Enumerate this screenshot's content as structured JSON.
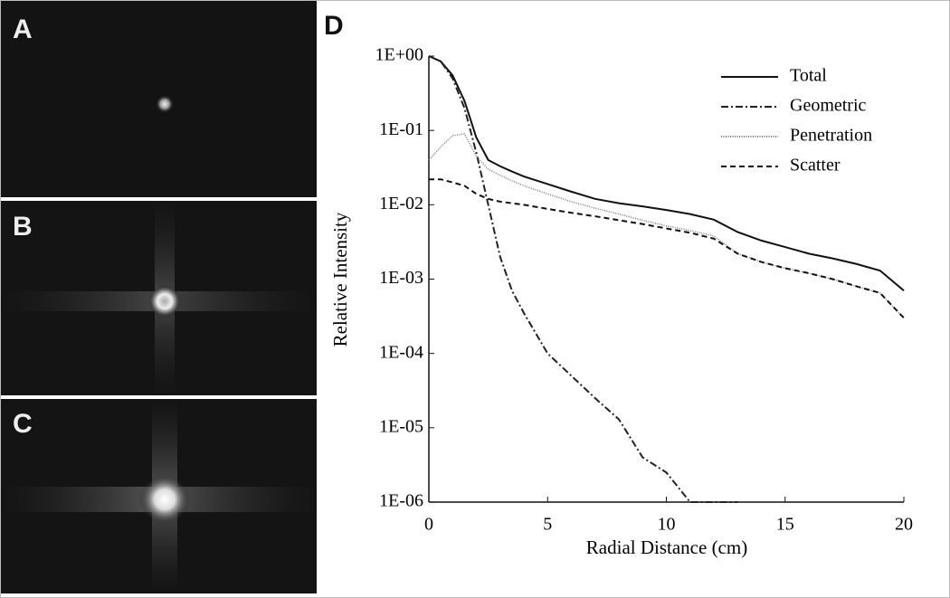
{
  "image_panels": [
    {
      "label": "A"
    },
    {
      "label": "B"
    },
    {
      "label": "C"
    }
  ],
  "chart_data": {
    "type": "line",
    "panel_label": "D",
    "x_label": "Radial Distance (cm)",
    "y_label": "Relative Intensity",
    "log_y": true,
    "legend": "upper right",
    "xlim": [
      0,
      20
    ],
    "xticks": [
      0,
      5,
      10,
      15,
      20
    ],
    "ylim": [
      1e-06,
      1
    ],
    "yticks": [
      {
        "value": 1,
        "label": "1E+00"
      },
      {
        "value": 0.1,
        "label": "1E-01"
      },
      {
        "value": 0.01,
        "label": "1E-02"
      },
      {
        "value": 0.001,
        "label": "1E-03"
      },
      {
        "value": 0.0001,
        "label": "1E-04"
      },
      {
        "value": 1e-05,
        "label": "1E-05"
      },
      {
        "value": 1e-06,
        "label": "1E-06"
      }
    ],
    "x": [
      0,
      0.5,
      1,
      1.5,
      2,
      2.5,
      3,
      3.5,
      4,
      5,
      6,
      7,
      8,
      9,
      10,
      11,
      12,
      13,
      14,
      15,
      16,
      17,
      18,
      19,
      20
    ],
    "series": [
      {
        "name": "Total",
        "color": "#111111",
        "dash": "none",
        "values": [
          1,
          0.85,
          0.55,
          0.25,
          0.08,
          0.04,
          0.033,
          0.028,
          0.024,
          0.019,
          0.015,
          0.012,
          0.0105,
          0.0095,
          0.0085,
          0.0075,
          0.0063,
          0.0043,
          0.0033,
          0.0027,
          0.0022,
          0.0019,
          0.0016,
          0.0013,
          0.0007
        ]
      },
      {
        "name": "Geometric",
        "color": "#222222",
        "dash": "8 3 2 3",
        "values": [
          1,
          0.85,
          0.5,
          0.2,
          0.05,
          0.01,
          0.002,
          0.0007,
          0.00035,
          0.0001,
          5e-05,
          2.5e-05,
          1.3e-05,
          4e-06,
          2.5e-06,
          1e-06,
          1e-06,
          1e-06,
          null,
          null,
          null,
          null,
          null,
          null,
          null
        ]
      },
      {
        "name": "Penetration",
        "color": "#777777",
        "dash": "1 1.5",
        "values": [
          0.04,
          0.06,
          0.085,
          0.09,
          0.045,
          0.03,
          0.025,
          0.021,
          0.018,
          0.014,
          0.011,
          0.009,
          0.0075,
          0.0062,
          0.0052,
          0.0045,
          0.0038,
          0.0022,
          0.0017,
          0.0014,
          0.0012,
          0.001,
          0.0008,
          0.00065,
          0.0003
        ]
      },
      {
        "name": "Scatter",
        "color": "#111111",
        "dash": "6 4",
        "values": [
          0.022,
          0.022,
          0.02,
          0.018,
          0.014,
          0.012,
          0.011,
          0.0105,
          0.01,
          0.0088,
          0.0078,
          0.007,
          0.0062,
          0.0055,
          0.0048,
          0.0042,
          0.0035,
          0.0022,
          0.0017,
          0.0014,
          0.0012,
          0.001,
          0.0008,
          0.00065,
          0.0003
        ]
      }
    ]
  }
}
